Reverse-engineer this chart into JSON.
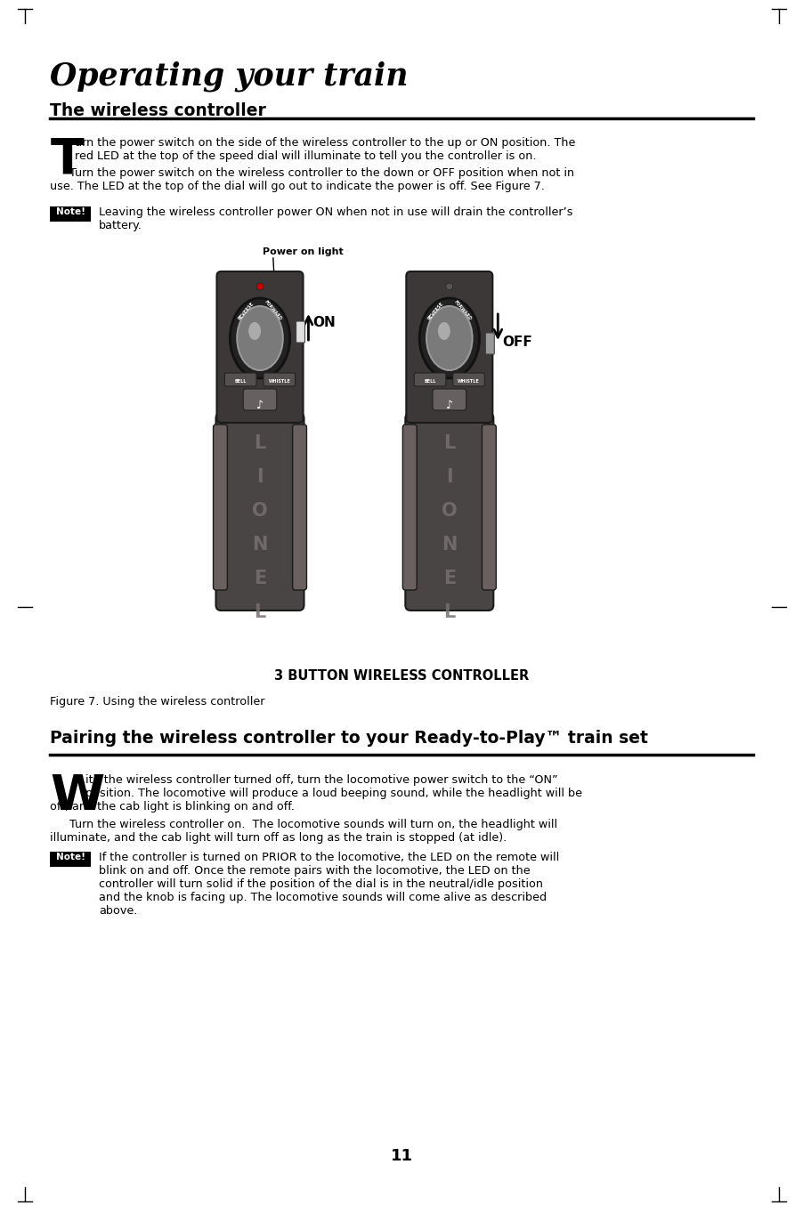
{
  "page_title": "Operating your train",
  "section1_title": "The wireless controller",
  "note1_text_line1": "Leaving the wireless controller power ON when not in use will drain the controller’s",
  "note1_text_line2": "battery.",
  "power_on_light_label": "Power on light",
  "on_label": "ON",
  "off_label": "OFF",
  "controller_caption": "3 BUTTON WIRELESS CONTROLLER",
  "figure_caption": "Figure 7. Using the wireless controller",
  "section2_title": "Pairing the wireless controller to your Ready-to-Play™ train set",
  "note2_lines": [
    "If the controller is turned on PRIOR to the locomotive, the LED on the remote will",
    "blink on and off. Once the remote pairs with the locomotive, the LED on the",
    "controller will turn solid if the position of the dial is in the neutral/idle position",
    "and the knob is facing up. The locomotive sounds will come alive as described",
    "above."
  ],
  "page_number": "11",
  "bg_color": "#ffffff",
  "text_color": "#000000",
  "note_bg_color": "#000000",
  "note_text_color": "#ffffff",
  "title_color": "#000000",
  "controller_dark": "#3a3a3a",
  "controller_mid": "#555555",
  "controller_light": "#888888",
  "controller_silver": "#aaaaaa",
  "controller_edge": "#222222"
}
